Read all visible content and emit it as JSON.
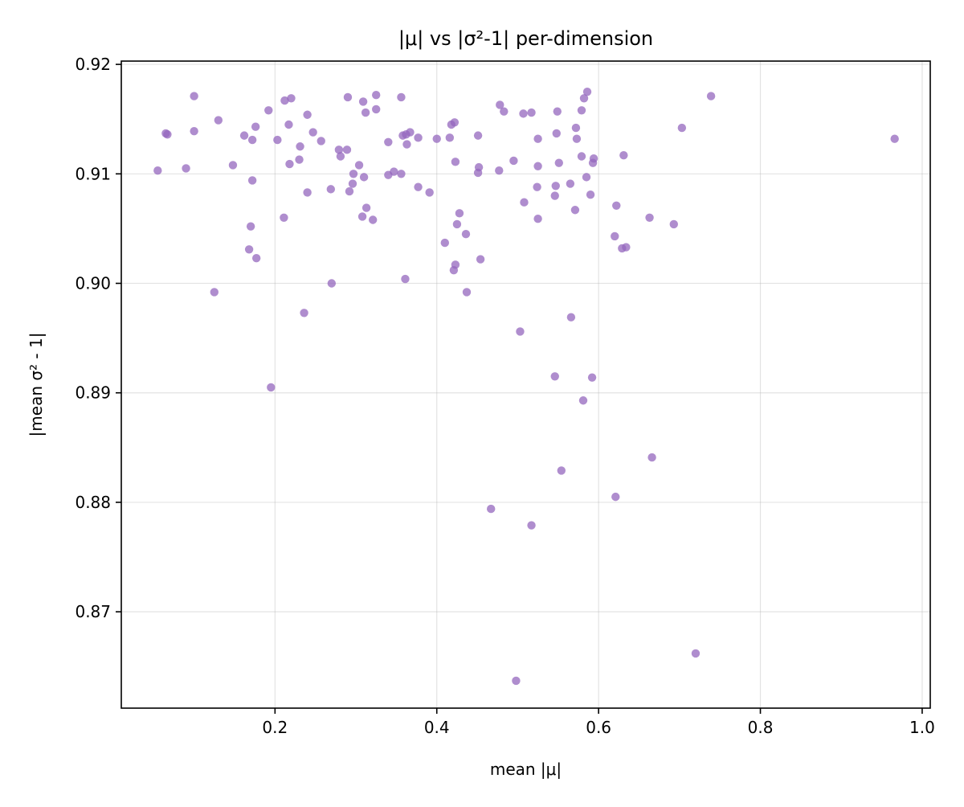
{
  "chart_data": {
    "type": "scatter",
    "title": "|μ| vs |σ²-1| per-dimension",
    "xlabel": "mean |μ|",
    "ylabel": "|mean σ² - 1|",
    "xlim": [
      0.01,
      1.01
    ],
    "ylim": [
      0.8612,
      0.9203
    ],
    "x_ticks": [
      0.2,
      0.4,
      0.6,
      0.8,
      1.0
    ],
    "x_tick_labels": [
      "0.2",
      "0.4",
      "0.6",
      "0.8",
      "1.0"
    ],
    "y_ticks": [
      0.87,
      0.88,
      0.89,
      0.9,
      0.91,
      0.92
    ],
    "y_tick_labels": [
      "0.87",
      "0.88",
      "0.89",
      "0.90",
      "0.91",
      "0.92"
    ],
    "grid": true,
    "legend": "none",
    "marker_color": "#9467bd",
    "marker_opacity": 0.75,
    "series": [
      {
        "points": [
          [
            0.055,
            0.9103
          ],
          [
            0.065,
            0.9137
          ],
          [
            0.067,
            0.9136
          ],
          [
            0.09,
            0.9105
          ],
          [
            0.1,
            0.9171
          ],
          [
            0.1,
            0.9139
          ],
          [
            0.125,
            0.8992
          ],
          [
            0.13,
            0.9149
          ],
          [
            0.148,
            0.9108
          ],
          [
            0.162,
            0.9135
          ],
          [
            0.168,
            0.9031
          ],
          [
            0.17,
            0.9052
          ],
          [
            0.172,
            0.9131
          ],
          [
            0.172,
            0.9094
          ],
          [
            0.176,
            0.9143
          ],
          [
            0.177,
            0.9023
          ],
          [
            0.192,
            0.9158
          ],
          [
            0.195,
            0.8905
          ],
          [
            0.203,
            0.9131
          ],
          [
            0.211,
            0.906
          ],
          [
            0.212,
            0.9167
          ],
          [
            0.217,
            0.9145
          ],
          [
            0.218,
            0.9109
          ],
          [
            0.22,
            0.9169
          ],
          [
            0.23,
            0.9113
          ],
          [
            0.231,
            0.9125
          ],
          [
            0.236,
            0.8973
          ],
          [
            0.24,
            0.9154
          ],
          [
            0.24,
            0.9083
          ],
          [
            0.247,
            0.9138
          ],
          [
            0.257,
            0.913
          ],
          [
            0.269,
            0.9086
          ],
          [
            0.27,
            0.9
          ],
          [
            0.279,
            0.9122
          ],
          [
            0.281,
            0.9116
          ],
          [
            0.289,
            0.9122
          ],
          [
            0.29,
            0.917
          ],
          [
            0.292,
            0.9084
          ],
          [
            0.296,
            0.9091
          ],
          [
            0.297,
            0.91
          ],
          [
            0.304,
            0.9108
          ],
          [
            0.308,
            0.9061
          ],
          [
            0.309,
            0.9166
          ],
          [
            0.31,
            0.9097
          ],
          [
            0.312,
            0.9156
          ],
          [
            0.313,
            0.9069
          ],
          [
            0.321,
            0.9058
          ],
          [
            0.325,
            0.9172
          ],
          [
            0.325,
            0.9159
          ],
          [
            0.34,
            0.9129
          ],
          [
            0.34,
            0.9099
          ],
          [
            0.347,
            0.9102
          ],
          [
            0.356,
            0.917
          ],
          [
            0.356,
            0.91
          ],
          [
            0.358,
            0.9135
          ],
          [
            0.361,
            0.9004
          ],
          [
            0.362,
            0.9136
          ],
          [
            0.363,
            0.9127
          ],
          [
            0.367,
            0.9138
          ],
          [
            0.377,
            0.9133
          ],
          [
            0.377,
            0.9088
          ],
          [
            0.391,
            0.9083
          ],
          [
            0.4,
            0.9132
          ],
          [
            0.41,
            0.9037
          ],
          [
            0.416,
            0.9133
          ],
          [
            0.418,
            0.9145
          ],
          [
            0.421,
            0.9012
          ],
          [
            0.422,
            0.9147
          ],
          [
            0.423,
            0.9017
          ],
          [
            0.423,
            0.9111
          ],
          [
            0.425,
            0.9054
          ],
          [
            0.428,
            0.9064
          ],
          [
            0.436,
            0.9045
          ],
          [
            0.437,
            0.8992
          ],
          [
            0.451,
            0.9135
          ],
          [
            0.451,
            0.9101
          ],
          [
            0.452,
            0.9106
          ],
          [
            0.454,
            0.9022
          ],
          [
            0.467,
            0.8794
          ],
          [
            0.477,
            0.9103
          ],
          [
            0.478,
            0.9163
          ],
          [
            0.483,
            0.9157
          ],
          [
            0.495,
            0.9112
          ],
          [
            0.498,
            0.8637
          ],
          [
            0.503,
            0.8956
          ],
          [
            0.507,
            0.9155
          ],
          [
            0.508,
            0.9074
          ],
          [
            0.517,
            0.9156
          ],
          [
            0.517,
            0.8779
          ],
          [
            0.524,
            0.9088
          ],
          [
            0.525,
            0.9107
          ],
          [
            0.525,
            0.9059
          ],
          [
            0.525,
            0.9132
          ],
          [
            0.546,
            0.908
          ],
          [
            0.546,
            0.8915
          ],
          [
            0.547,
            0.9089
          ],
          [
            0.548,
            0.9137
          ],
          [
            0.549,
            0.9157
          ],
          [
            0.551,
            0.911
          ],
          [
            0.554,
            0.8829
          ],
          [
            0.565,
            0.9091
          ],
          [
            0.566,
            0.8969
          ],
          [
            0.571,
            0.9067
          ],
          [
            0.572,
            0.9142
          ],
          [
            0.573,
            0.9132
          ],
          [
            0.579,
            0.9116
          ],
          [
            0.579,
            0.9158
          ],
          [
            0.581,
            0.8893
          ],
          [
            0.582,
            0.9169
          ],
          [
            0.585,
            0.9097
          ],
          [
            0.586,
            0.9175
          ],
          [
            0.59,
            0.9081
          ],
          [
            0.592,
            0.8914
          ],
          [
            0.593,
            0.911
          ],
          [
            0.594,
            0.9114
          ],
          [
            0.62,
            0.9043
          ],
          [
            0.621,
            0.8805
          ],
          [
            0.622,
            0.9071
          ],
          [
            0.629,
            0.9032
          ],
          [
            0.631,
            0.9117
          ],
          [
            0.634,
            0.9033
          ],
          [
            0.663,
            0.906
          ],
          [
            0.666,
            0.8841
          ],
          [
            0.693,
            0.9054
          ],
          [
            0.703,
            0.9142
          ],
          [
            0.72,
            0.8662
          ],
          [
            0.739,
            0.9171
          ],
          [
            0.966,
            0.9132
          ]
        ]
      }
    ]
  }
}
